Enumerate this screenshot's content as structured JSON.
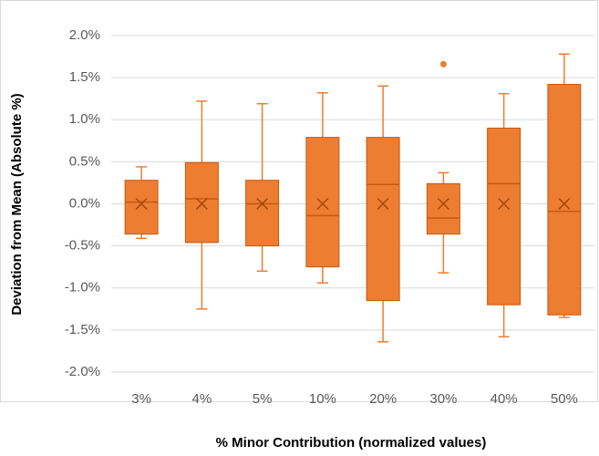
{
  "chart_data": {
    "type": "box",
    "xlabel": "% Minor Contribution (normalized values)",
    "ylabel": "Deviation from Mean (Absolute %)",
    "categories": [
      "3%",
      "4%",
      "5%",
      "10%",
      "20%",
      "30%",
      "40%",
      "50%"
    ],
    "color": "#ed7d31",
    "grid": true,
    "ylim": [
      -2,
      2
    ],
    "yticks": [
      {
        "value": -2,
        "label": "-2.0%"
      },
      {
        "value": -1.5,
        "label": "-1.5%"
      },
      {
        "value": -1,
        "label": "-1.0%"
      },
      {
        "value": -0.5,
        "label": "-0.5%"
      },
      {
        "value": 0,
        "label": "0.0%"
      },
      {
        "value": 0.5,
        "label": "0.5%"
      },
      {
        "value": 1,
        "label": "1.0%"
      },
      {
        "value": 1.5,
        "label": "1.5%"
      },
      {
        "value": 2,
        "label": "2.0%"
      }
    ],
    "boxes": [
      {
        "min": -0.41,
        "q1": -0.36,
        "median": 0.02,
        "q3": 0.28,
        "max": 0.44,
        "mean": 0,
        "outliers": []
      },
      {
        "min": -1.25,
        "q1": -0.46,
        "median": 0.06,
        "q3": 0.49,
        "max": 1.22,
        "mean": 0,
        "outliers": []
      },
      {
        "min": -0.8,
        "q1": -0.5,
        "median": 0,
        "q3": 0.28,
        "max": 1.19,
        "mean": 0,
        "outliers": []
      },
      {
        "min": -0.94,
        "q1": -0.75,
        "median": -0.14,
        "q3": 0.79,
        "max": 1.32,
        "mean": 0,
        "outliers": []
      },
      {
        "min": -1.64,
        "q1": -1.15,
        "median": 0.23,
        "q3": 0.79,
        "max": 1.4,
        "mean": 0,
        "outliers": []
      },
      {
        "min": -0.82,
        "q1": -0.36,
        "median": -0.17,
        "q3": 0.24,
        "max": 0.37,
        "mean": 0,
        "outliers": [
          1.66
        ]
      },
      {
        "min": -1.58,
        "q1": -1.2,
        "median": 0.24,
        "q3": 0.9,
        "max": 1.31,
        "mean": 0,
        "outliers": []
      },
      {
        "min": -1.35,
        "q1": -1.32,
        "median": -0.09,
        "q3": 1.42,
        "max": 1.78,
        "mean": 0,
        "outliers": []
      }
    ]
  }
}
